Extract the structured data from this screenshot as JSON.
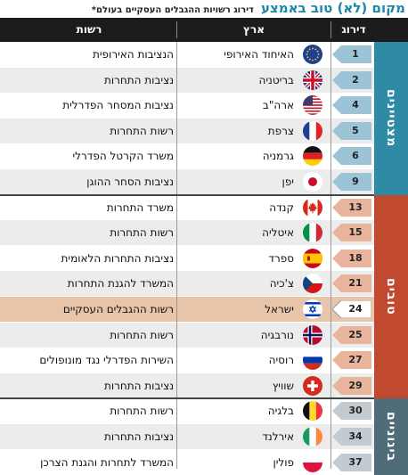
{
  "title": "מקום (לא) טוב באמצע",
  "subtitle": "דירוג רשויות ההגבלים העסקיים בעולם*",
  "columns": {
    "rank": "דירוג",
    "country": "ארץ",
    "authority": "רשות"
  },
  "groups": [
    {
      "label": "מצטיינים",
      "color": "#2f8aa6"
    },
    {
      "label": "טובים",
      "color": "#c0492f"
    },
    {
      "label": "בינוניים",
      "color": "#4f6c78"
    }
  ],
  "rows": [
    {
      "rank": "1",
      "country": "האיחוד האירופי",
      "authority": "הנציבות האירופית",
      "flag": "eu-flag-icon",
      "group": 0
    },
    {
      "rank": "2",
      "country": "בריטניה",
      "authority": "נציבות התחרות",
      "flag": "uk-flag-icon",
      "group": 0
    },
    {
      "rank": "4",
      "country": "ארה\"ב",
      "authority": "נציבות המסחר הפדרלית",
      "flag": "us-flag-icon",
      "group": 0
    },
    {
      "rank": "5",
      "country": "צרפת",
      "authority": "רשות התחרות",
      "flag": "france-flag-icon",
      "group": 0
    },
    {
      "rank": "6",
      "country": "גרמניה",
      "authority": "משרד הקרטל הפדרלי",
      "flag": "germany-flag-icon",
      "group": 0
    },
    {
      "rank": "9",
      "country": "יפן",
      "authority": "נציבות הסחר ההוגן",
      "flag": "japan-flag-icon",
      "group": 0
    },
    {
      "rank": "13",
      "country": "קנדה",
      "authority": "משרד התחרות",
      "flag": "canada-flag-icon",
      "group": 1
    },
    {
      "rank": "15",
      "country": "איטליה",
      "authority": "רשות התחרות",
      "flag": "italy-flag-icon",
      "group": 1
    },
    {
      "rank": "18",
      "country": "ספרד",
      "authority": "נציבות התחרות הלאומית",
      "flag": "spain-flag-icon",
      "group": 1
    },
    {
      "rank": "21",
      "country": "צ'כיה",
      "authority": "המשרד להגנת התחרות",
      "flag": "czech-flag-icon",
      "group": 1
    },
    {
      "rank": "24",
      "country": "ישראל",
      "authority": "רשות ההגבלים העסקיים",
      "flag": "israel-flag-icon",
      "group": 1,
      "highlight": true
    },
    {
      "rank": "25",
      "country": "נורבגיה",
      "authority": "רשות התחרות",
      "flag": "norway-flag-icon",
      "group": 1
    },
    {
      "rank": "27",
      "country": "רוסיה",
      "authority": "השירות הפדרלי נגד מונופולים",
      "flag": "russia-flag-icon",
      "group": 1
    },
    {
      "rank": "29",
      "country": "שוויץ",
      "authority": "נציבות התחרות",
      "flag": "switzerland-flag-icon",
      "group": 1
    },
    {
      "rank": "30",
      "country": "בלגיה",
      "authority": "רשות התחרות",
      "flag": "belgium-flag-icon",
      "group": 2
    },
    {
      "rank": "34",
      "country": "אירלנד",
      "authority": "נציבות התחרות",
      "flag": "ireland-flag-icon",
      "group": 2
    },
    {
      "rank": "37",
      "country": "פולין",
      "authority": "המשרד לתחרות והגנת הצרכן",
      "flag": "poland-flag-icon",
      "group": 2
    }
  ]
}
